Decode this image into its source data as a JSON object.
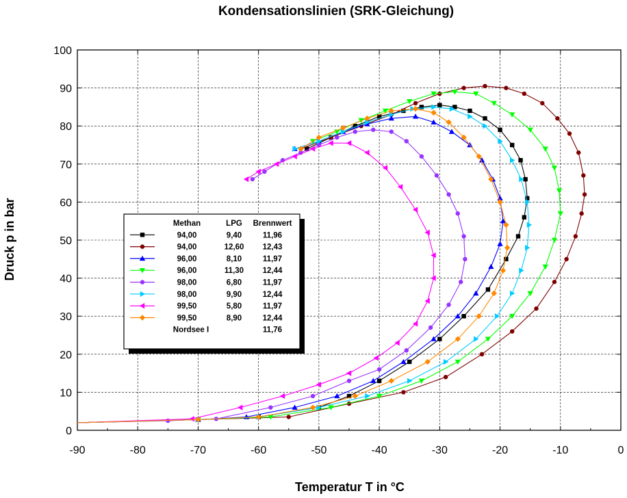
{
  "chart_data": {
    "type": "line",
    "title": "Kondensationslinien (SRK-Gleichung)",
    "xlabel": "Temperatur T in °C",
    "ylabel": "Druck p in bar",
    "xlim": [
      -90,
      0
    ],
    "ylim": [
      0,
      100
    ],
    "x_ticks": [
      -90,
      -80,
      -70,
      -60,
      -50,
      -40,
      -30,
      -20,
      -10,
      0
    ],
    "y_ticks": [
      0,
      10,
      20,
      30,
      40,
      50,
      60,
      70,
      80,
      90,
      100
    ],
    "grid": true,
    "legend_placement": "center-left",
    "legend": {
      "headers": [
        "Methan",
        "LPG",
        "Brennwert"
      ],
      "extra_row": {
        "label": "Nordsee I",
        "brennwert": "11,76"
      }
    },
    "series": [
      {
        "methan": "94,00",
        "lpg": "9,40",
        "brennwert": "11,96",
        "color": "#000000",
        "marker": "square",
        "x": [
          -90,
          -70,
          -60,
          -50,
          -45,
          -40,
          -35,
          -30,
          -26,
          -22,
          -19,
          -17,
          -16,
          -15.5,
          -15.8,
          -16.6,
          -18,
          -20,
          -22.5,
          -25,
          -27.5,
          -30,
          -33,
          -36,
          -40,
          -44,
          -48,
          -52
        ],
        "y": [
          2,
          2.8,
          3.5,
          6,
          9,
          13,
          18,
          24,
          30,
          37,
          45,
          51,
          56,
          61,
          66,
          71,
          75,
          79,
          82,
          84,
          85,
          85.5,
          85,
          84,
          82.5,
          80,
          77,
          74
        ]
      },
      {
        "methan": "94,00",
        "lpg": "12,60",
        "brennwert": "12,43",
        "color": "#7f0000",
        "marker": "circle",
        "x": [
          -90,
          -70,
          -55,
          -45,
          -36,
          -29,
          -23,
          -18,
          -14,
          -11,
          -9,
          -7.5,
          -6.5,
          -6,
          -6.2,
          -7,
          -8.5,
          -10.5,
          -13,
          -16,
          -19,
          -22.5,
          -26,
          -30,
          -34,
          -38,
          -43,
          -48,
          -53
        ],
        "y": [
          2,
          2.8,
          3.5,
          7,
          10,
          14,
          20,
          26,
          32,
          39,
          45,
          51,
          57,
          62,
          67,
          73,
          78,
          82,
          86,
          88.5,
          90,
          90.5,
          90,
          88.5,
          86,
          83,
          80,
          77,
          74
        ]
      },
      {
        "methan": "96,00",
        "lpg": "8,10",
        "brennwert": "11,97",
        "color": "#0000ff",
        "marker": "triangle-up",
        "x": [
          -90,
          -70,
          -62,
          -54,
          -47,
          -41,
          -36,
          -31,
          -27,
          -24,
          -21.5,
          -20,
          -19.5,
          -20,
          -21.2,
          -23,
          -25,
          -28,
          -31,
          -34,
          -38,
          -42,
          -46,
          -50,
          -54
        ],
        "y": [
          2,
          2.8,
          3.5,
          6,
          9,
          13,
          18,
          24,
          30,
          36,
          43,
          49,
          55,
          61,
          66,
          71,
          75,
          78.5,
          81,
          82.5,
          82,
          80.5,
          78.5,
          76,
          74
        ]
      },
      {
        "methan": "96,00",
        "lpg": "11,30",
        "brennwert": "12,44",
        "color": "#00ff00",
        "marker": "triangle-down",
        "x": [
          -90,
          -70,
          -58,
          -48,
          -40,
          -33,
          -27,
          -22,
          -18,
          -15,
          -12.5,
          -11,
          -10,
          -10.2,
          -11,
          -12.5,
          -15,
          -18,
          -21,
          -24,
          -27.5,
          -31,
          -35,
          -39,
          -43,
          -47,
          -51
        ],
        "y": [
          2,
          2.8,
          3.5,
          6,
          9,
          13,
          18,
          24,
          30,
          36,
          43,
          50,
          57,
          63,
          69,
          74,
          79,
          83,
          86,
          88.5,
          89,
          88.5,
          86.5,
          84,
          81.5,
          78.5,
          76
        ]
      },
      {
        "methan": "98,00",
        "lpg": "6,80",
        "brennwert": "11,97",
        "color": "#9933ff",
        "marker": "circle",
        "x": [
          -90,
          -75,
          -67,
          -58,
          -51,
          -45,
          -40,
          -35.5,
          -31.5,
          -28.5,
          -26.5,
          -25.8,
          -26,
          -27,
          -28.5,
          -30.5,
          -33,
          -35.5,
          -38,
          -41,
          -44,
          -47,
          -50,
          -53,
          -56,
          -59,
          -61
        ],
        "y": [
          2,
          2.5,
          3,
          6,
          9,
          13,
          16,
          21,
          27,
          33,
          39,
          45,
          51,
          57,
          62,
          67,
          72,
          76,
          78.5,
          79,
          78.5,
          77,
          75,
          73,
          71,
          68,
          66
        ]
      },
      {
        "methan": "98,00",
        "lpg": "9,90",
        "brennwert": "12,44",
        "color": "#00ccff",
        "marker": "triangle-right",
        "x": [
          -90,
          -70,
          -60,
          -50,
          -42,
          -35,
          -29,
          -24,
          -20.5,
          -18,
          -16.5,
          -15.5,
          -15.2,
          -15.5,
          -16.5,
          -18,
          -20,
          -22.5,
          -25,
          -28,
          -31,
          -34.5,
          -38,
          -42,
          -46,
          -50,
          -54
        ],
        "y": [
          2,
          2.8,
          3.5,
          6,
          9,
          13,
          18,
          24,
          30,
          36,
          42,
          48,
          54,
          60,
          66,
          71,
          76,
          80,
          82.5,
          84.5,
          85,
          84.5,
          83,
          81,
          78.5,
          76,
          74
        ]
      },
      {
        "methan": "99,50",
        "lpg": "5,80",
        "brennwert": "11,97",
        "color": "#ff00ff",
        "marker": "triangle-left",
        "x": [
          -90,
          -71,
          -63,
          -56,
          -50,
          -45,
          -40.5,
          -37,
          -34,
          -32,
          -31,
          -31,
          -32,
          -34,
          -36.5,
          -39,
          -42,
          -45,
          -48,
          -51,
          -54,
          -57,
          -60,
          -62
        ],
        "y": [
          2,
          3,
          6,
          9,
          12,
          15,
          19,
          23,
          28,
          34,
          40,
          46,
          52,
          58,
          64,
          69,
          73,
          75.5,
          75.5,
          74,
          72,
          70,
          68,
          66
        ]
      },
      {
        "methan": "99,50",
        "lpg": "8,90",
        "brennwert": "12,44",
        "color": "#ff8800",
        "marker": "diamond",
        "x": [
          -90,
          -70,
          -60,
          -51,
          -44,
          -38,
          -32,
          -27,
          -23.5,
          -21,
          -19.5,
          -18.8,
          -19,
          -20,
          -21.5,
          -23.5,
          -26,
          -28.5,
          -31,
          -34,
          -38,
          -42,
          -46,
          -50,
          -53
        ],
        "y": [
          2,
          2.8,
          3.5,
          6,
          9,
          13,
          18,
          24,
          30,
          36,
          42,
          48,
          54,
          60,
          66,
          72,
          77,
          81,
          83.5,
          84.5,
          84,
          82,
          79.5,
          77,
          74
        ]
      }
    ]
  }
}
